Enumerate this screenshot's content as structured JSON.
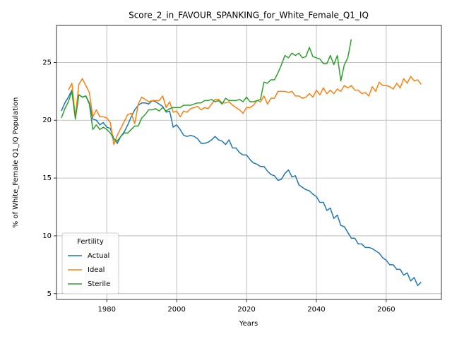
{
  "chart_data": {
    "type": "line",
    "title": "Score_2_in_FAVOUR_SPANKING_for_White_Female_Q1_IQ",
    "x_label": "Years",
    "y_label": "% of White_Female Q1_IQ Population",
    "x": [
      1967,
      1968,
      1969,
      1970,
      1971,
      1972,
      1973,
      1974,
      1975,
      1976,
      1977,
      1978,
      1979,
      1980,
      1981,
      1982,
      1983,
      1984,
      1985,
      1986,
      1987,
      1988,
      1989,
      1990,
      1991,
      1992,
      1993,
      1994,
      1995,
      1996,
      1997,
      1998,
      1999,
      2000,
      2001,
      2002,
      2003,
      2004,
      2005,
      2006,
      2007,
      2008,
      2009,
      2010,
      2011,
      2012,
      2013,
      2014,
      2015,
      2016,
      2017,
      2018,
      2019,
      2020,
      2021,
      2022,
      2023,
      2024,
      2025,
      2026,
      2027,
      2028,
      2029,
      2030,
      2031,
      2032,
      2033,
      2034,
      2035,
      2036,
      2037,
      2038,
      2039,
      2040,
      2041,
      2042,
      2043,
      2044,
      2045,
      2046,
      2047,
      2048,
      2049,
      2050,
      2051,
      2052,
      2053,
      2054,
      2055,
      2056,
      2057,
      2058,
      2059,
      2060,
      2061,
      2062,
      2063,
      2064,
      2065,
      2066,
      2067,
      2068,
      2069,
      2070
    ],
    "series": [
      {
        "name": "Actual",
        "color": "#1f77b4",
        "values": [
          20.8,
          21.5,
          22.0,
          22.6,
          20.3,
          22.2,
          22.0,
          22.1,
          21.5,
          20.1,
          20.0,
          19.6,
          19.8,
          19.4,
          19.3,
          18.4,
          18.0,
          18.6,
          19.0,
          19.6,
          20.3,
          20.9,
          21.3,
          21.5,
          21.5,
          21.4,
          21.7,
          21.6,
          21.4,
          21.2,
          20.7,
          20.8,
          19.4,
          19.6,
          19.2,
          18.7,
          18.6,
          18.7,
          18.6,
          18.4,
          18.0,
          18.0,
          18.1,
          18.3,
          18.6,
          18.3,
          18.2,
          17.9,
          18.3,
          17.6,
          17.6,
          17.2,
          17.0,
          17.0,
          16.6,
          16.3,
          16.2,
          16.0,
          16.0,
          15.6,
          15.3,
          15.2,
          14.8,
          14.9,
          15.4,
          15.7,
          15.1,
          15.2,
          14.4,
          14.2,
          14.0,
          13.9,
          13.6,
          13.4,
          12.9,
          12.9,
          12.2,
          12.4,
          11.5,
          11.8,
          10.9,
          10.8,
          10.3,
          9.8,
          9.8,
          9.3,
          9.3,
          9.0,
          9.0,
          8.9,
          8.7,
          8.5,
          8.1,
          7.9,
          7.5,
          7.5,
          7.1,
          7.1,
          6.6,
          6.8,
          6.1,
          6.4,
          5.7,
          6.0
        ]
      },
      {
        "name": "Ideal",
        "color": "#ff7f0e",
        "values": [
          null,
          null,
          22.6,
          23.2,
          20.3,
          23.1,
          23.6,
          23.0,
          22.4,
          20.3,
          20.9,
          20.3,
          20.3,
          20.2,
          19.8,
          17.9,
          18.7,
          19.3,
          19.9,
          20.5,
          20.6,
          19.7,
          21.4,
          22.0,
          21.8,
          21.6,
          21.7,
          21.7,
          21.7,
          22.1,
          21.1,
          21.6,
          20.7,
          20.8,
          20.3,
          20.8,
          20.7,
          21.0,
          21.1,
          21.2,
          20.9,
          21.1,
          21.0,
          21.4,
          21.8,
          21.8,
          21.5,
          21.5,
          21.6,
          21.3,
          21.1,
          20.9,
          20.6,
          21.1,
          21.1,
          21.3,
          21.7,
          21.6,
          22.1,
          21.4,
          21.9,
          21.9,
          22.5,
          22.5,
          22.5,
          22.4,
          22.5,
          22.1,
          22.1,
          21.9,
          22.0,
          22.3,
          22.0,
          22.6,
          22.2,
          22.8,
          22.3,
          22.6,
          22.3,
          22.7,
          22.5,
          23.0,
          22.8,
          23.0,
          22.6,
          22.6,
          22.3,
          22.4,
          22.1,
          22.9,
          22.5,
          23.3,
          23.0,
          23.0,
          22.9,
          22.7,
          23.2,
          22.8,
          23.6,
          23.2,
          23.8,
          23.4,
          23.5,
          23.1
        ]
      },
      {
        "name": "Sterile",
        "color": "#2ca02c",
        "values": [
          20.2,
          21.0,
          21.6,
          22.5,
          20.1,
          22.2,
          22.0,
          22.1,
          21.4,
          19.2,
          19.6,
          19.2,
          19.4,
          19.2,
          18.9,
          18.4,
          18.2,
          18.6,
          18.9,
          18.9,
          19.2,
          19.5,
          19.5,
          20.2,
          20.5,
          20.9,
          20.9,
          21.0,
          20.8,
          21.1,
          20.8,
          21.0,
          21.1,
          21.1,
          21.1,
          21.3,
          21.3,
          21.3,
          21.4,
          21.5,
          21.5,
          21.7,
          21.7,
          21.8,
          21.6,
          21.7,
          21.4,
          21.9,
          21.7,
          21.7,
          21.7,
          21.8,
          21.6,
          22.0,
          21.6,
          21.6,
          21.7,
          21.8,
          23.3,
          23.2,
          23.5,
          23.5,
          24.1,
          24.8,
          25.6,
          25.4,
          25.8,
          25.6,
          25.8,
          25.4,
          25.5,
          26.3,
          25.5,
          25.4,
          25.3,
          24.9,
          24.9,
          25.6,
          24.8,
          25.6,
          23.4,
          24.8,
          25.4,
          27.0,
          null,
          null,
          null,
          null,
          null,
          null,
          null,
          null,
          null,
          null,
          null,
          null,
          null,
          null,
          null,
          null,
          null,
          null,
          null,
          null
        ]
      }
    ],
    "xlim": [
      1965.6,
      2075.8
    ],
    "ylim": [
      4.5,
      28.2
    ],
    "xticks": [
      1980,
      2000,
      2020,
      2040,
      2060
    ],
    "yticks": [
      5,
      10,
      15,
      20,
      25
    ],
    "grid": true,
    "legend_title": "Fertility",
    "legend_loc": "lower left"
  }
}
